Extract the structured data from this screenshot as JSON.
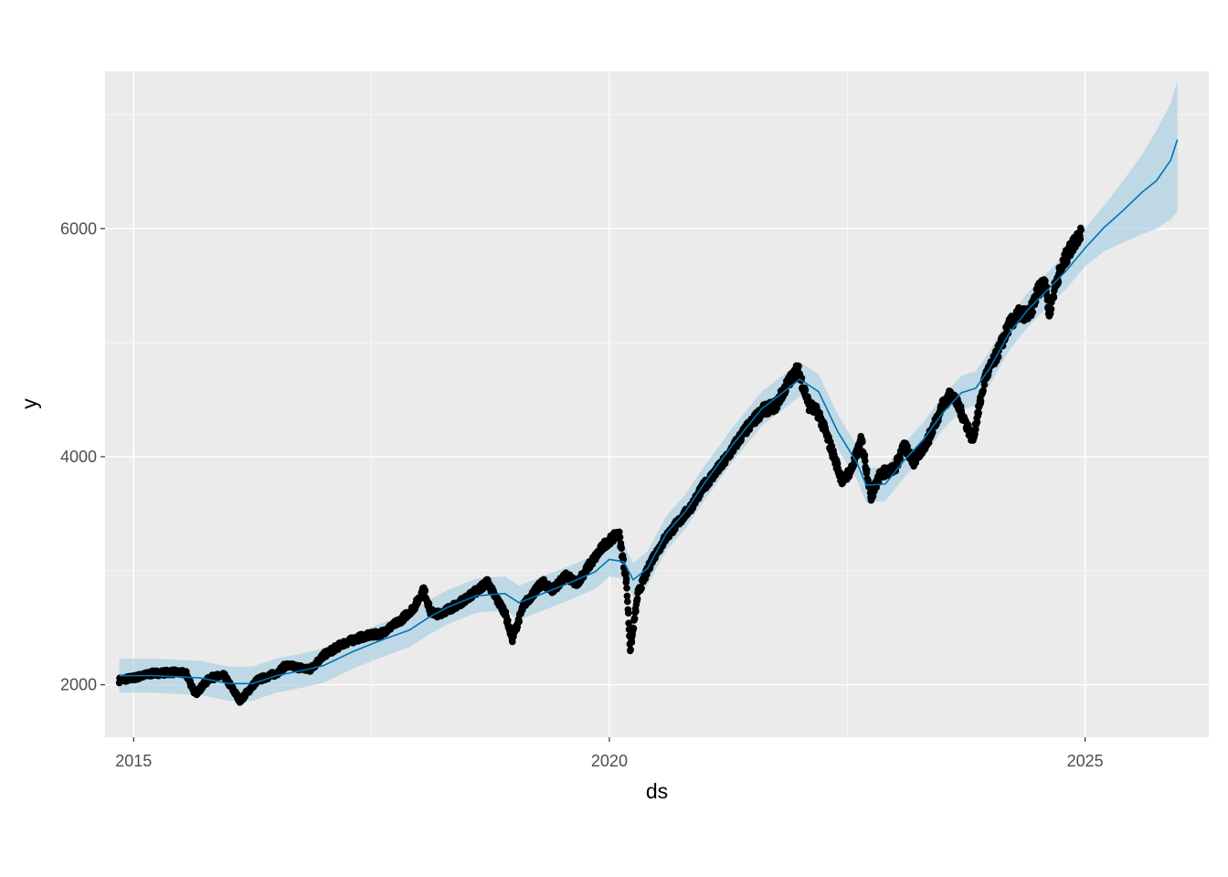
{
  "chart_data": {
    "type": "line",
    "title": "",
    "xlabel": "ds",
    "ylabel": "y",
    "xlim": [
      2014.7,
      2026.3
    ],
    "ylim": [
      1540,
      7380
    ],
    "x_ticks": [
      2015,
      2020,
      2025
    ],
    "x_tick_labels": [
      "2015",
      "2020",
      "2025"
    ],
    "y_ticks": [
      2000,
      4000,
      6000
    ],
    "y_tick_labels": [
      "2000",
      "4000",
      "6000"
    ],
    "grid": true,
    "legend": "none",
    "colors": {
      "panel": "#ebebeb",
      "grid": "#ffffff",
      "observed": "#000000",
      "forecast": "#0072b2",
      "interval": "#a6cee3"
    },
    "observed_points": [
      [
        2014.85,
        2040
      ],
      [
        2015.0,
        2060
      ],
      [
        2015.2,
        2100
      ],
      [
        2015.4,
        2110
      ],
      [
        2015.55,
        2100
      ],
      [
        2015.65,
        1920
      ],
      [
        2015.8,
        2060
      ],
      [
        2015.95,
        2080
      ],
      [
        2016.05,
        1950
      ],
      [
        2016.12,
        1860
      ],
      [
        2016.3,
        2040
      ],
      [
        2016.5,
        2100
      ],
      [
        2016.6,
        2170
      ],
      [
        2016.75,
        2150
      ],
      [
        2016.85,
        2130
      ],
      [
        2017.0,
        2260
      ],
      [
        2017.2,
        2360
      ],
      [
        2017.4,
        2420
      ],
      [
        2017.6,
        2450
      ],
      [
        2017.8,
        2560
      ],
      [
        2017.95,
        2680
      ],
      [
        2018.05,
        2840
      ],
      [
        2018.12,
        2640
      ],
      [
        2018.2,
        2620
      ],
      [
        2018.4,
        2700
      ],
      [
        2018.6,
        2820
      ],
      [
        2018.72,
        2900
      ],
      [
        2018.8,
        2770
      ],
      [
        2018.9,
        2640
      ],
      [
        2018.98,
        2400
      ],
      [
        2019.1,
        2700
      ],
      [
        2019.3,
        2900
      ],
      [
        2019.4,
        2830
      ],
      [
        2019.55,
        2960
      ],
      [
        2019.65,
        2880
      ],
      [
        2019.8,
        3060
      ],
      [
        2019.95,
        3230
      ],
      [
        2020.1,
        3330
      ],
      [
        2020.18,
        2900
      ],
      [
        2020.22,
        2300
      ],
      [
        2020.3,
        2800
      ],
      [
        2020.45,
        3100
      ],
      [
        2020.6,
        3300
      ],
      [
        2020.7,
        3400
      ],
      [
        2020.85,
        3550
      ],
      [
        2021.0,
        3750
      ],
      [
        2021.2,
        3950
      ],
      [
        2021.4,
        4200
      ],
      [
        2021.6,
        4400
      ],
      [
        2021.75,
        4450
      ],
      [
        2021.88,
        4650
      ],
      [
        2021.98,
        4770
      ],
      [
        2022.1,
        4450
      ],
      [
        2022.2,
        4380
      ],
      [
        2022.3,
        4150
      ],
      [
        2022.45,
        3780
      ],
      [
        2022.55,
        3900
      ],
      [
        2022.65,
        4150
      ],
      [
        2022.75,
        3650
      ],
      [
        2022.85,
        3850
      ],
      [
        2023.0,
        3900
      ],
      [
        2023.1,
        4100
      ],
      [
        2023.2,
        3950
      ],
      [
        2023.35,
        4150
      ],
      [
        2023.5,
        4450
      ],
      [
        2023.6,
        4560
      ],
      [
        2023.72,
        4350
      ],
      [
        2023.82,
        4150
      ],
      [
        2023.95,
        4700
      ],
      [
        2024.05,
        4850
      ],
      [
        2024.2,
        5150
      ],
      [
        2024.3,
        5250
      ],
      [
        2024.42,
        5250
      ],
      [
        2024.5,
        5450
      ],
      [
        2024.58,
        5550
      ],
      [
        2024.62,
        5250
      ],
      [
        2024.7,
        5550
      ],
      [
        2024.8,
        5750
      ],
      [
        2024.9,
        5900
      ],
      [
        2024.96,
        5980
      ]
    ],
    "forecast": {
      "x": [
        2014.85,
        2015.2,
        2015.45,
        2015.7,
        2016.0,
        2016.25,
        2016.5,
        2016.8,
        2017.0,
        2017.3,
        2017.6,
        2017.9,
        2018.1,
        2018.3,
        2018.6,
        2018.9,
        2019.05,
        2019.3,
        2019.6,
        2019.85,
        2020.0,
        2020.15,
        2020.25,
        2020.4,
        2020.6,
        2020.8,
        2021.0,
        2021.3,
        2021.6,
        2021.85,
        2022.0,
        2022.2,
        2022.4,
        2022.6,
        2022.7,
        2022.9,
        2023.1,
        2023.3,
        2023.5,
        2023.7,
        2023.85,
        2024.0,
        2024.2,
        2024.4,
        2024.6,
        2024.8,
        2025.0,
        2025.2,
        2025.4,
        2025.6,
        2025.75,
        2025.9,
        2025.97
      ],
      "yhat": [
        2080,
        2080,
        2070,
        2060,
        2010,
        2010,
        2080,
        2130,
        2170,
        2290,
        2390,
        2480,
        2590,
        2680,
        2780,
        2800,
        2720,
        2800,
        2900,
        2990,
        3100,
        3080,
        2920,
        3020,
        3330,
        3520,
        3770,
        4110,
        4420,
        4580,
        4680,
        4570,
        4220,
        3950,
        3750,
        3760,
        3970,
        4150,
        4380,
        4560,
        4600,
        4780,
        5080,
        5290,
        5460,
        5630,
        5830,
        6010,
        6160,
        6320,
        6420,
        6600,
        6780
      ],
      "lower": [
        1930,
        1930,
        1920,
        1910,
        1860,
        1860,
        1930,
        1980,
        2020,
        2140,
        2240,
        2330,
        2440,
        2530,
        2630,
        2650,
        2570,
        2650,
        2750,
        2840,
        2950,
        2930,
        2770,
        2870,
        3180,
        3370,
        3620,
        3960,
        4270,
        4430,
        4530,
        4420,
        4070,
        3800,
        3600,
        3610,
        3820,
        4000,
        4230,
        4410,
        4450,
        4630,
        4930,
        5140,
        5310,
        5470,
        5670,
        5800,
        5880,
        5950,
        6000,
        6080,
        6150
      ],
      "upper": [
        2230,
        2230,
        2220,
        2210,
        2160,
        2160,
        2230,
        2280,
        2320,
        2440,
        2540,
        2630,
        2740,
        2830,
        2930,
        2950,
        2870,
        2950,
        3050,
        3140,
        3250,
        3230,
        3070,
        3170,
        3480,
        3670,
        3920,
        4260,
        4570,
        4730,
        4830,
        4720,
        4370,
        4100,
        3900,
        3910,
        4120,
        4300,
        4530,
        4710,
        4750,
        4930,
        5230,
        5440,
        5610,
        5790,
        6000,
        6200,
        6420,
        6650,
        6860,
        7100,
        7300
      ]
    }
  }
}
